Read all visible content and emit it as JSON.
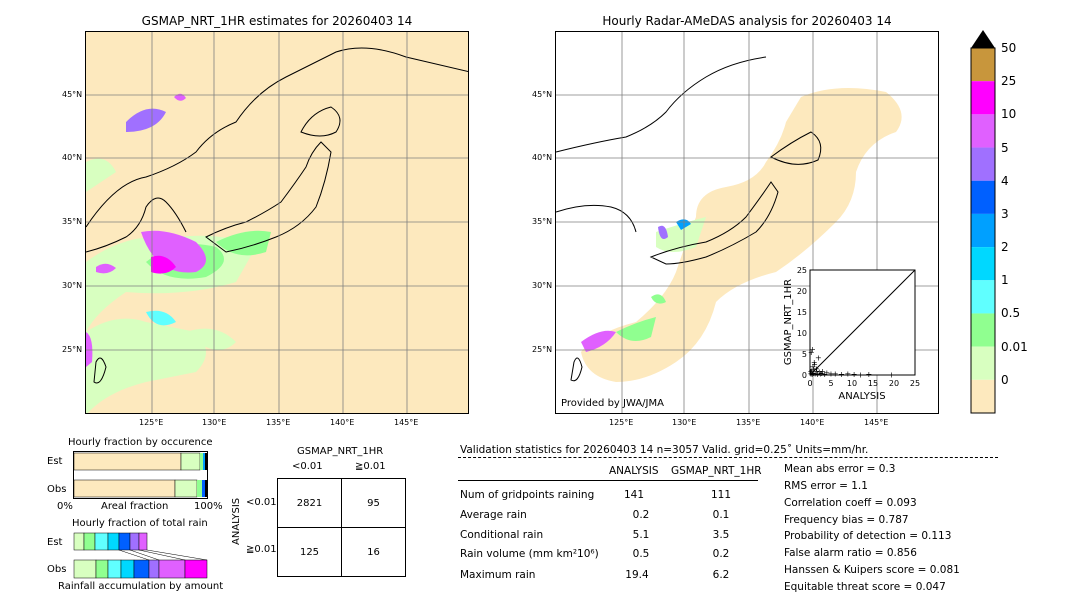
{
  "left_map": {
    "title": "GSMAP_NRT_1HR estimates for 20260403 14",
    "lat_labels": [
      "45°N",
      "40°N",
      "35°N",
      "30°N",
      "25°N"
    ],
    "lon_labels": [
      "125°E",
      "130°E",
      "135°E",
      "140°E",
      "145°E"
    ]
  },
  "right_map": {
    "title": "Hourly Radar-AMeDAS analysis for 20260403 14",
    "lat_labels": [
      "45°N",
      "40°N",
      "35°N",
      "30°N",
      "25°N"
    ],
    "lon_labels": [
      "125°E",
      "130°E",
      "135°E",
      "140°E",
      "145°E"
    ],
    "credit": "Provided by JWA/JMA"
  },
  "colorbar": {
    "labels": [
      "50",
      "25",
      "10",
      "5",
      "4",
      "3",
      "2",
      "1",
      "0.5",
      "0.01",
      "0"
    ],
    "colors": [
      "#c8963c",
      "#ff00ff",
      "#e060ff",
      "#a070ff",
      "#0060ff",
      "#00a0ff",
      "#00d8ff",
      "#60ffff",
      "#90ff90",
      "#d8ffc0",
      "#fde9be"
    ],
    "top_color": "#000000"
  },
  "chart_data": [
    {
      "type": "scatter",
      "title": "",
      "xlabel": "ANALYSIS",
      "ylabel": "GSMAP_NRT_1HR",
      "xlim": [
        0,
        25
      ],
      "ylim": [
        0,
        25
      ],
      "xticks": [
        "0",
        "5",
        "10",
        "15",
        "20",
        "25"
      ],
      "yticks": [
        "0",
        "5",
        "10",
        "15",
        "20",
        "25"
      ],
      "points": [
        [
          0.2,
          0.3
        ],
        [
          0.4,
          1.1
        ],
        [
          0.5,
          0.2
        ],
        [
          0.7,
          2.0
        ],
        [
          0.8,
          0.5
        ],
        [
          1.0,
          3.1
        ],
        [
          1.2,
          0.4
        ],
        [
          1.5,
          1.6
        ],
        [
          1.8,
          0.2
        ],
        [
          2.0,
          4.2
        ],
        [
          2.2,
          0.8
        ],
        [
          2.5,
          0.3
        ],
        [
          3.0,
          1.0
        ],
        [
          3.5,
          0.2
        ],
        [
          4.0,
          0.6
        ],
        [
          5.0,
          0.3
        ],
        [
          6.0,
          0.4
        ],
        [
          7.5,
          0.2
        ],
        [
          9.0,
          0.3
        ],
        [
          10.5,
          0.2
        ],
        [
          12.0,
          0.1
        ],
        [
          14.0,
          0.2
        ],
        [
          19.4,
          0.1
        ],
        [
          0.3,
          5.5
        ],
        [
          0.6,
          6.2
        ],
        [
          1.1,
          2.6
        ],
        [
          0.2,
          0.9
        ],
        [
          0.9,
          1.4
        ],
        [
          1.6,
          0.9
        ],
        [
          2.8,
          0.5
        ]
      ]
    },
    {
      "type": "bar",
      "title": "Hourly fraction by occurence",
      "categories": [
        "Est",
        "Obs"
      ],
      "xlabel": "Areal fraction",
      "x_tick_labels": [
        "0%",
        "100%"
      ]
    },
    {
      "type": "bar",
      "title": "Hourly fraction of total rain",
      "categories": [
        "Est",
        "Obs"
      ],
      "xlabel": "Rainfall accumulation by amount"
    },
    {
      "type": "table",
      "title": "GSMAP_NRT_1HR",
      "col_labels": [
        "<0.01",
        "≧0.01"
      ],
      "row_axis_label": "ANALYSIS",
      "row_labels": [
        "<0.01",
        "≧0.01"
      ],
      "cells": [
        [
          "2821",
          "95"
        ],
        [
          "125",
          "16"
        ]
      ]
    }
  ],
  "validation": {
    "header": "Validation statistics for 20260403 14  n=3057 Valid. grid=0.25˚ Units=mm/hr.",
    "col_analysis": "ANALYSIS",
    "col_gsmap": "GSMAP_NRT_1HR",
    "rows": [
      {
        "label": "Num of gridpoints raining",
        "analysis": "141",
        "gsmap": "111"
      },
      {
        "label": "Average rain",
        "analysis": "0.2",
        "gsmap": "0.1"
      },
      {
        "label": "Conditional rain",
        "analysis": "5.1",
        "gsmap": "3.5"
      },
      {
        "label": "Rain volume (mm km²10⁶)",
        "analysis": "0.5",
        "gsmap": "0.2"
      },
      {
        "label": "Maximum rain",
        "analysis": "19.4",
        "gsmap": "6.2"
      }
    ],
    "scores": [
      "Mean abs error =    0.3",
      "RMS error =    1.1",
      "Correlation coeff =  0.093",
      "Frequency bias =  0.787",
      "Probability of detection =  0.113",
      "False alarm ratio =  0.856",
      "Hanssen & Kuipers score =  0.081",
      "Equitable threat score =  0.047"
    ]
  }
}
